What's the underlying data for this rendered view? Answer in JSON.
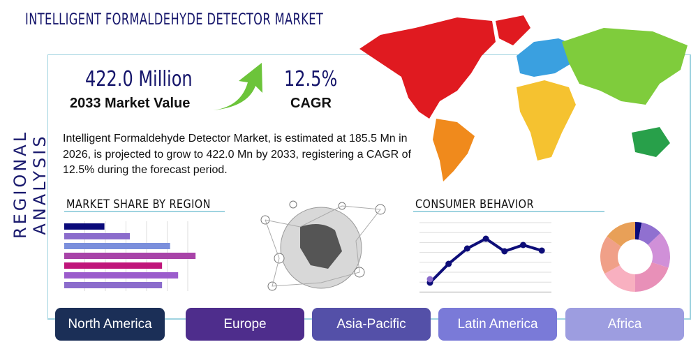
{
  "header": {
    "title": "INTELLIGENT FORMALDEHYDE DETECTOR MARKET",
    "side_label": "REGIONAL ANALYSIS"
  },
  "stats": {
    "market_value": "422.0 Million",
    "market_value_label": "2033 Market Value",
    "cagr": "12.5%",
    "cagr_label": "CAGR"
  },
  "description": "Intelligent Formaldehyde Detector Market, is estimated at 185.5 Mn in 2026, is projected to grow to 422.0 Mn by 2033, registering a CAGR of 12.5% during the forecast period.",
  "sections": {
    "market_share": "MARKET SHARE BY REGION",
    "consumer": "CONSUMER BEHAVIOR"
  },
  "regions": [
    {
      "label": "North America",
      "color": "#1b2f57"
    },
    {
      "label": "Europe",
      "color": "#4e2d8c"
    },
    {
      "label": "Asia-Pacific",
      "color": "#5450a8"
    },
    {
      "label": "Latin America",
      "color": "#7a7ad8"
    },
    {
      "label": "Africa",
      "color": "#9d9de0"
    }
  ],
  "colors": {
    "accent": "#14146a",
    "arrow": "#6cc43a",
    "frame": "#9fd3e0"
  },
  "decor_bars": {
    "values": [
      30,
      49,
      79,
      98,
      73,
      85,
      73
    ],
    "colors": [
      "#0a0a7a",
      "#8b6ccc",
      "#7b8fdc",
      "#a843a8",
      "#c0157a",
      "#9b5ccc",
      "#8b6ccc"
    ]
  },
  "decor_line": {
    "values": [
      5,
      32,
      54,
      68,
      50,
      59,
      51
    ]
  },
  "decor_donut": {
    "values": [
      3,
      10,
      17,
      20,
      17,
      18,
      15
    ],
    "colors": [
      "#0a0a7a",
      "#9070d0",
      "#d090d8",
      "#e890b8",
      "#f8b0c0",
      "#f0a088",
      "#e8a058"
    ]
  }
}
